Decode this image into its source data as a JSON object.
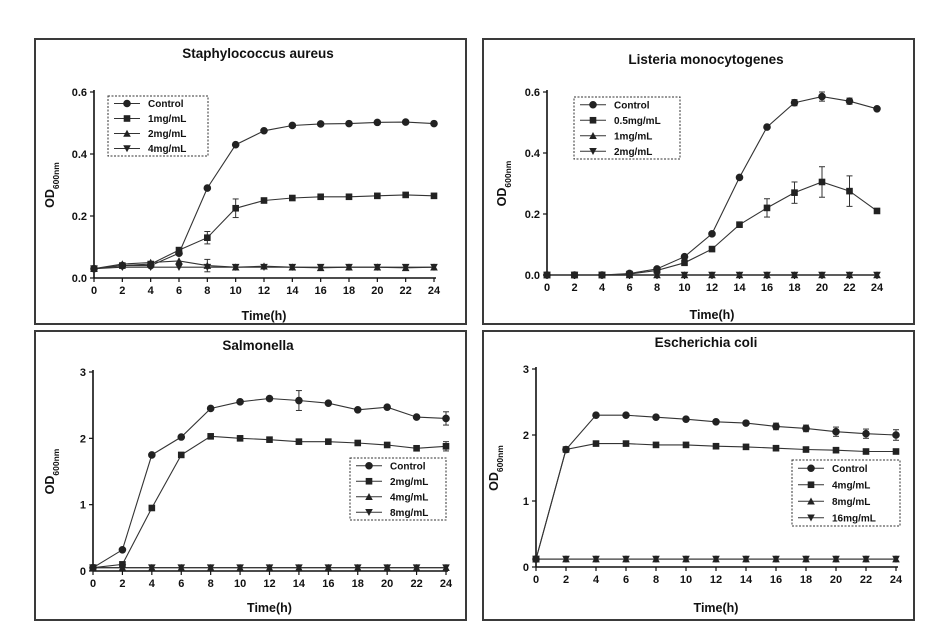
{
  "chart_data": [
    {
      "type": "line",
      "title": "Staphylococcus aureus",
      "xlabel": "Time(h)",
      "ylabel": "OD600nm",
      "ylabel_main": "OD",
      "ylabel_sub": "600nm",
      "xlim": [
        0,
        24
      ],
      "ylim": [
        0,
        0.6
      ],
      "x_ticks": [
        "0",
        "2",
        "4",
        "6",
        "8",
        "10",
        "12",
        "14",
        "16",
        "18",
        "20",
        "22",
        "24"
      ],
      "y_ticks": [
        "0.0",
        "0.2",
        "0.4",
        "0.6"
      ],
      "x": [
        0,
        2,
        4,
        6,
        8,
        10,
        12,
        14,
        16,
        18,
        20,
        22,
        24
      ],
      "legend_position": "top-left",
      "series": [
        {
          "name": "Control",
          "marker": "circle",
          "values": [
            0.03,
            0.04,
            0.04,
            0.08,
            0.29,
            0.43,
            0.475,
            0.492,
            0.497,
            0.498,
            0.502,
            0.503,
            0.498
          ],
          "errors": [
            0,
            0,
            0,
            0,
            0,
            0,
            0,
            0,
            0,
            0,
            0,
            0,
            0
          ]
        },
        {
          "name": "1mg/mL",
          "marker": "square",
          "values": [
            0.03,
            0.04,
            0.045,
            0.09,
            0.13,
            0.225,
            0.25,
            0.258,
            0.262,
            0.262,
            0.265,
            0.268,
            0.265
          ],
          "errors": [
            0,
            0,
            0,
            0,
            0.02,
            0.03,
            0,
            0,
            0,
            0,
            0,
            0,
            0
          ]
        },
        {
          "name": "2mg/mL",
          "marker": "triangle",
          "values": [
            0.03,
            0.045,
            0.05,
            0.055,
            0.04,
            0.035,
            0.038,
            0.035,
            0.033,
            0.035,
            0.035,
            0.033,
            0.035
          ],
          "errors": [
            0,
            0,
            0,
            0,
            0.02,
            0,
            0,
            0,
            0,
            0,
            0,
            0,
            0
          ]
        },
        {
          "name": "4mg/mL",
          "marker": "tridown",
          "values": [
            0.03,
            0.035,
            0.035,
            0.035,
            0.035,
            0.035,
            0.035,
            0.035,
            0.035,
            0.035,
            0.035,
            0.035,
            0.035
          ],
          "errors": [
            0,
            0,
            0,
            0,
            0,
            0,
            0,
            0,
            0,
            0,
            0,
            0,
            0
          ]
        }
      ]
    },
    {
      "type": "line",
      "title": "Listeria monocytogenes",
      "xlabel": "Time(h)",
      "ylabel": "OD600nm",
      "ylabel_main": "OD",
      "ylabel_sub": "600nm",
      "xlim": [
        0,
        24
      ],
      "ylim": [
        0,
        0.6
      ],
      "x_ticks": [
        "0",
        "2",
        "4",
        "6",
        "8",
        "10",
        "12",
        "14",
        "16",
        "18",
        "20",
        "22",
        "24"
      ],
      "y_ticks": [
        "0.0",
        "0.2",
        "0.4",
        "0.6"
      ],
      "x": [
        0,
        2,
        4,
        6,
        8,
        10,
        12,
        14,
        16,
        18,
        20,
        22,
        24
      ],
      "legend_position": "top-left",
      "series": [
        {
          "name": "Control",
          "marker": "circle",
          "values": [
            0,
            0,
            0,
            0.005,
            0.02,
            0.06,
            0.135,
            0.32,
            0.485,
            0.565,
            0.585,
            0.57,
            0.545
          ],
          "errors": [
            0,
            0,
            0,
            0,
            0,
            0,
            0,
            0,
            0,
            0.01,
            0.015,
            0.01,
            0
          ]
        },
        {
          "name": "0.5mg/mL",
          "marker": "square",
          "values": [
            0,
            0,
            0,
            0.003,
            0.015,
            0.04,
            0.085,
            0.165,
            0.22,
            0.27,
            0.305,
            0.275,
            0.21
          ],
          "errors": [
            0,
            0,
            0,
            0,
            0,
            0,
            0,
            0,
            0.03,
            0.035,
            0.05,
            0.05,
            0
          ]
        },
        {
          "name": "1mg/mL",
          "marker": "triangle",
          "values": [
            0,
            0,
            0,
            0,
            0,
            0,
            0,
            0,
            0,
            0,
            0,
            0,
            0
          ],
          "errors": [
            0,
            0,
            0,
            0,
            0,
            0,
            0,
            0,
            0,
            0,
            0,
            0,
            0
          ]
        },
        {
          "name": "2mg/mL",
          "marker": "tridown",
          "values": [
            0,
            0,
            0,
            0,
            0,
            0,
            0,
            0,
            0,
            0,
            0,
            0,
            0
          ],
          "errors": [
            0,
            0,
            0,
            0,
            0,
            0,
            0,
            0,
            0,
            0,
            0,
            0,
            0
          ]
        }
      ]
    },
    {
      "type": "line",
      "title": "Salmonella",
      "xlabel": "Time(h)",
      "ylabel": "OD600nm",
      "ylabel_main": "OD",
      "ylabel_sub": "600nm",
      "xlim": [
        0,
        24
      ],
      "ylim": [
        0,
        3
      ],
      "x_ticks": [
        "0",
        "2",
        "4",
        "6",
        "8",
        "10",
        "12",
        "14",
        "16",
        "18",
        "20",
        "22",
        "24"
      ],
      "y_ticks": [
        "0",
        "1",
        "2",
        "3"
      ],
      "x": [
        0,
        2,
        4,
        6,
        8,
        10,
        12,
        14,
        16,
        18,
        20,
        22,
        24
      ],
      "legend_position": "center-right",
      "series": [
        {
          "name": "Control",
          "marker": "circle",
          "values": [
            0.05,
            0.32,
            1.75,
            2.02,
            2.45,
            2.55,
            2.6,
            2.57,
            2.53,
            2.43,
            2.47,
            2.32,
            2.3
          ],
          "errors": [
            0,
            0,
            0,
            0,
            0,
            0,
            0,
            0.15,
            0,
            0,
            0,
            0,
            0.1
          ]
        },
        {
          "name": "2mg/mL",
          "marker": "square",
          "values": [
            0.05,
            0.1,
            0.95,
            1.75,
            2.03,
            2.0,
            1.98,
            1.95,
            1.95,
            1.93,
            1.9,
            1.85,
            1.88
          ],
          "errors": [
            0,
            0,
            0,
            0,
            0,
            0,
            0,
            0,
            0,
            0,
            0,
            0,
            0.07
          ]
        },
        {
          "name": "4mg/mL",
          "marker": "triangle",
          "values": [
            0.05,
            0.05,
            0.05,
            0.05,
            0.05,
            0.05,
            0.05,
            0.05,
            0.05,
            0.05,
            0.05,
            0.05,
            0.05
          ],
          "errors": [
            0,
            0,
            0,
            0,
            0,
            0,
            0,
            0,
            0,
            0,
            0,
            0,
            0
          ]
        },
        {
          "name": "8mg/mL",
          "marker": "tridown",
          "values": [
            0.05,
            0.05,
            0.05,
            0.05,
            0.05,
            0.05,
            0.05,
            0.05,
            0.05,
            0.05,
            0.05,
            0.05,
            0.05
          ],
          "errors": [
            0,
            0,
            0,
            0,
            0,
            0,
            0,
            0,
            0,
            0,
            0,
            0,
            0
          ]
        }
      ]
    },
    {
      "type": "line",
      "title": "Escherichia coli",
      "xlabel": "Time(h)",
      "ylabel": "OD600nm",
      "ylabel_main": "OD",
      "ylabel_sub": "600nm",
      "xlim": [
        0,
        24
      ],
      "ylim": [
        0,
        3
      ],
      "x_ticks": [
        "0",
        "2",
        "4",
        "6",
        "8",
        "10",
        "12",
        "14",
        "16",
        "18",
        "20",
        "22",
        "24"
      ],
      "y_ticks": [
        "0",
        "1",
        "2",
        "3"
      ],
      "x": [
        0,
        2,
        4,
        6,
        8,
        10,
        12,
        14,
        16,
        18,
        20,
        22,
        24
      ],
      "legend_position": "bottom-right",
      "series": [
        {
          "name": "Control",
          "marker": "circle",
          "values": [
            0.12,
            1.78,
            2.3,
            2.3,
            2.27,
            2.24,
            2.2,
            2.18,
            2.13,
            2.1,
            2.05,
            2.02,
            2.0
          ],
          "errors": [
            0,
            0,
            0,
            0,
            0,
            0,
            0,
            0,
            0.05,
            0.05,
            0.07,
            0.07,
            0.08
          ]
        },
        {
          "name": "4mg/mL",
          "marker": "square",
          "values": [
            0.12,
            1.78,
            1.87,
            1.87,
            1.85,
            1.85,
            1.83,
            1.82,
            1.8,
            1.78,
            1.77,
            1.75,
            1.75
          ],
          "errors": [
            0,
            0,
            0,
            0,
            0,
            0,
            0,
            0,
            0,
            0,
            0,
            0,
            0
          ]
        },
        {
          "name": "8mg/mL",
          "marker": "triangle",
          "values": [
            0.12,
            0.12,
            0.12,
            0.12,
            0.12,
            0.12,
            0.12,
            0.12,
            0.12,
            0.12,
            0.12,
            0.12,
            0.12
          ],
          "errors": [
            0,
            0,
            0,
            0,
            0,
            0,
            0,
            0,
            0,
            0,
            0,
            0,
            0
          ]
        },
        {
          "name": "16mg/mL",
          "marker": "tridown",
          "values": [
            0.12,
            0.12,
            0.12,
            0.12,
            0.12,
            0.12,
            0.12,
            0.12,
            0.12,
            0.12,
            0.12,
            0.12,
            0.12
          ],
          "errors": [
            0,
            0,
            0,
            0,
            0,
            0,
            0,
            0,
            0,
            0,
            0,
            0,
            0
          ]
        }
      ]
    }
  ]
}
